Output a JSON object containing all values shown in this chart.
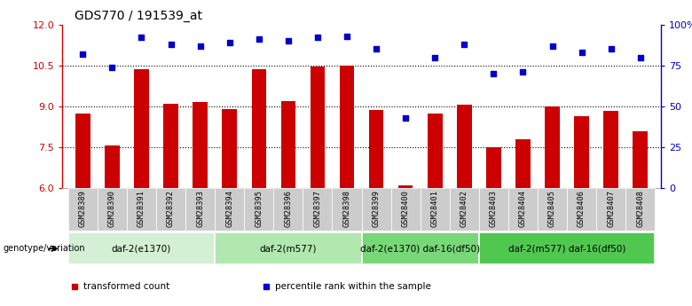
{
  "title": "GDS770 / 191539_at",
  "samples": [
    "GSM28389",
    "GSM28390",
    "GSM28391",
    "GSM28392",
    "GSM28393",
    "GSM28394",
    "GSM28395",
    "GSM28396",
    "GSM28397",
    "GSM28398",
    "GSM28399",
    "GSM28400",
    "GSM28401",
    "GSM28402",
    "GSM28403",
    "GSM28404",
    "GSM28405",
    "GSM28406",
    "GSM28407",
    "GSM28408"
  ],
  "transformed_count": [
    8.75,
    7.55,
    10.35,
    9.1,
    9.15,
    8.9,
    10.35,
    9.2,
    10.45,
    10.5,
    8.88,
    6.1,
    8.75,
    9.05,
    7.5,
    7.8,
    9.0,
    8.65,
    8.85,
    8.1
  ],
  "percentile_rank": [
    82,
    74,
    92,
    88,
    87,
    89,
    91,
    90,
    92,
    93,
    85,
    43,
    80,
    88,
    70,
    71,
    87,
    83,
    85,
    80
  ],
  "ylim_left": [
    6,
    12
  ],
  "yticks_left": [
    6,
    7.5,
    9,
    10.5,
    12
  ],
  "ytick_labels_right": [
    "0",
    "25",
    "50",
    "75",
    "100%"
  ],
  "groups": [
    {
      "label": "daf-2(e1370)",
      "start": 0,
      "end": 4,
      "color": "#d4f0d4"
    },
    {
      "label": "daf-2(m577)",
      "start": 5,
      "end": 9,
      "color": "#b0e8b0"
    },
    {
      "label": "daf-2(e1370) daf-16(df50)",
      "start": 10,
      "end": 13,
      "color": "#78d878"
    },
    {
      "label": "daf-2(m577) daf-16(df50)",
      "start": 14,
      "end": 19,
      "color": "#50c850"
    }
  ],
  "bar_color": "#cc0000",
  "dot_color": "#0000cc",
  "left_axis_color": "#cc0000",
  "right_axis_color": "#0000cc",
  "genotype_label": "genotype/variation",
  "legend_items": [
    {
      "label": "transformed count",
      "color": "#cc0000"
    },
    {
      "label": "percentile rank within the sample",
      "color": "#0000cc"
    }
  ],
  "bar_width": 0.5,
  "sample_label_bg": "#cccccc",
  "plot_bg": "#ffffff",
  "spine_color": "#aaaaaa"
}
